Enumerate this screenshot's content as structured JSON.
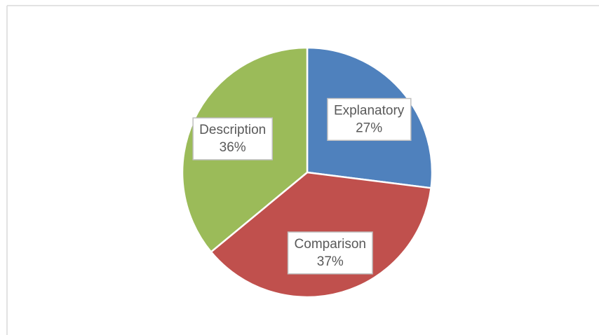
{
  "chart_data": {
    "type": "pie",
    "categories": [
      "Explanatory",
      "Comparison",
      "Description"
    ],
    "values": [
      27,
      37,
      36
    ],
    "value_labels": [
      "27%",
      "37%",
      "36%"
    ],
    "colors": [
      "#4f81bd",
      "#c0504d",
      "#9bbb59"
    ]
  }
}
